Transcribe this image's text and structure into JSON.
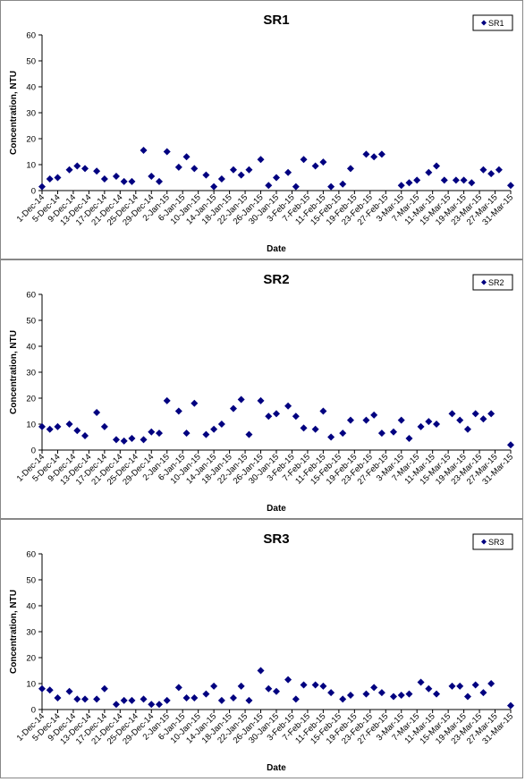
{
  "chart_data": [
    {
      "type": "scatter",
      "title": "SR1",
      "xlabel": "Date",
      "ylabel": "Concentration, NTU",
      "ylim": [
        0,
        60
      ],
      "yticks": [
        0,
        10,
        20,
        30,
        40,
        50,
        60
      ],
      "xlim": [
        "1-Dec-14",
        "31-Mar-15"
      ],
      "xtick_labels": [
        "1-Dec-14",
        "5-Dec-14",
        "9-Dec-14",
        "13-Dec-14",
        "17-Dec-14",
        "21-Dec-14",
        "25-Dec-14",
        "29-Dec-14",
        "2-Jan-15",
        "6-Jan-15",
        "10-Jan-15",
        "14-Jan-15",
        "18-Jan-15",
        "22-Jan-15",
        "26-Jan-15",
        "30-Jan-15",
        "3-Feb-15",
        "7-Feb-15",
        "11-Feb-15",
        "15-Feb-15",
        "19-Feb-15",
        "23-Feb-15",
        "27-Feb-15",
        "3-Mar-15",
        "7-Mar-15",
        "11-Mar-15",
        "15-Mar-15",
        "19-Mar-15",
        "23-Mar-15",
        "27-Mar-15",
        "31-Mar-15"
      ],
      "grid": false,
      "legend_position": "top-right",
      "marker_color": "#000080",
      "series": [
        {
          "name": "SR1",
          "points": [
            [
              "1-Dec-14",
              1.5
            ],
            [
              "3-Dec-14",
              4.5
            ],
            [
              "5-Dec-14",
              5
            ],
            [
              "8-Dec-14",
              8
            ],
            [
              "10-Dec-14",
              9.5
            ],
            [
              "12-Dec-14",
              8.5
            ],
            [
              "15-Dec-14",
              7.5
            ],
            [
              "17-Dec-14",
              4.5
            ],
            [
              "20-Dec-14",
              5.5
            ],
            [
              "22-Dec-14",
              3.5
            ],
            [
              "24-Dec-14",
              3.5
            ],
            [
              "27-Dec-14",
              15.5
            ],
            [
              "29-Dec-14",
              5.5
            ],
            [
              "31-Dec-14",
              3.5
            ],
            [
              "2-Jan-15",
              15
            ],
            [
              "5-Jan-15",
              9
            ],
            [
              "7-Jan-15",
              13
            ],
            [
              "9-Jan-15",
              8.5
            ],
            [
              "12-Jan-15",
              6
            ],
            [
              "14-Jan-15",
              1.5
            ],
            [
              "16-Jan-15",
              4.5
            ],
            [
              "19-Jan-15",
              8
            ],
            [
              "21-Jan-15",
              6
            ],
            [
              "23-Jan-15",
              8
            ],
            [
              "26-Jan-15",
              12
            ],
            [
              "28-Jan-15",
              2
            ],
            [
              "30-Jan-15",
              5
            ],
            [
              "2-Feb-15",
              7
            ],
            [
              "4-Feb-15",
              1.5
            ],
            [
              "6-Feb-15",
              12
            ],
            [
              "9-Feb-15",
              9.5
            ],
            [
              "11-Feb-15",
              11
            ],
            [
              "13-Feb-15",
              1.5
            ],
            [
              "16-Feb-15",
              2.5
            ],
            [
              "18-Feb-15",
              8.5
            ],
            [
              "22-Feb-15",
              14
            ],
            [
              "24-Feb-15",
              13
            ],
            [
              "26-Feb-15",
              14
            ],
            [
              "3-Mar-15",
              2
            ],
            [
              "5-Mar-15",
              3
            ],
            [
              "7-Mar-15",
              4
            ],
            [
              "10-Mar-15",
              7
            ],
            [
              "12-Mar-15",
              9.5
            ],
            [
              "14-Mar-15",
              4
            ],
            [
              "17-Mar-15",
              4
            ],
            [
              "19-Mar-15",
              4
            ],
            [
              "21-Mar-15",
              3
            ],
            [
              "24-Mar-15",
              8
            ],
            [
              "26-Mar-15",
              6.5
            ],
            [
              "28-Mar-15",
              8
            ],
            [
              "31-Mar-15",
              2
            ]
          ]
        }
      ]
    },
    {
      "type": "scatter",
      "title": "SR2",
      "xlabel": "Date",
      "ylabel": "Concentration, NTU",
      "ylim": [
        0,
        60
      ],
      "yticks": [
        0,
        10,
        20,
        30,
        40,
        50,
        60
      ],
      "xlim": [
        "1-Dec-14",
        "31-Mar-15"
      ],
      "xtick_labels": [
        "1-Dec-14",
        "5-Dec-14",
        "9-Dec-14",
        "13-Dec-14",
        "17-Dec-14",
        "21-Dec-14",
        "25-Dec-14",
        "29-Dec-14",
        "2-Jan-15",
        "6-Jan-15",
        "10-Jan-15",
        "14-Jan-15",
        "18-Jan-15",
        "22-Jan-15",
        "26-Jan-15",
        "30-Jan-15",
        "3-Feb-15",
        "7-Feb-15",
        "11-Feb-15",
        "15-Feb-15",
        "19-Feb-15",
        "23-Feb-15",
        "27-Feb-15",
        "3-Mar-15",
        "7-Mar-15",
        "11-Mar-15",
        "15-Mar-15",
        "19-Mar-15",
        "23-Mar-15",
        "27-Mar-15",
        "31-Mar-15"
      ],
      "grid": false,
      "legend_position": "top-right",
      "marker_color": "#000080",
      "series": [
        {
          "name": "SR2",
          "points": [
            [
              "1-Dec-14",
              9
            ],
            [
              "3-Dec-14",
              8
            ],
            [
              "5-Dec-14",
              9
            ],
            [
              "8-Dec-14",
              10
            ],
            [
              "10-Dec-14",
              7.5
            ],
            [
              "12-Dec-14",
              5.5
            ],
            [
              "15-Dec-14",
              14.5
            ],
            [
              "17-Dec-14",
              9
            ],
            [
              "20-Dec-14",
              4
            ],
            [
              "22-Dec-14",
              3.5
            ],
            [
              "24-Dec-14",
              4.5
            ],
            [
              "27-Dec-14",
              4
            ],
            [
              "29-Dec-14",
              7
            ],
            [
              "31-Dec-14",
              6.5
            ],
            [
              "2-Jan-15",
              19
            ],
            [
              "5-Jan-15",
              15
            ],
            [
              "7-Jan-15",
              6.5
            ],
            [
              "9-Jan-15",
              18
            ],
            [
              "12-Jan-15",
              6
            ],
            [
              "14-Jan-15",
              8
            ],
            [
              "16-Jan-15",
              10
            ],
            [
              "19-Jan-15",
              16
            ],
            [
              "21-Jan-15",
              19.5
            ],
            [
              "23-Jan-15",
              6
            ],
            [
              "26-Jan-15",
              19
            ],
            [
              "28-Jan-15",
              13
            ],
            [
              "30-Jan-15",
              14
            ],
            [
              "2-Feb-15",
              17
            ],
            [
              "4-Feb-15",
              13
            ],
            [
              "6-Feb-15",
              8.5
            ],
            [
              "9-Feb-15",
              8
            ],
            [
              "11-Feb-15",
              15
            ],
            [
              "13-Feb-15",
              5
            ],
            [
              "16-Feb-15",
              6.5
            ],
            [
              "18-Feb-15",
              11.5
            ],
            [
              "22-Feb-15",
              11.5
            ],
            [
              "24-Feb-15",
              13.5
            ],
            [
              "26-Feb-15",
              6.5
            ],
            [
              "1-Mar-15",
              7
            ],
            [
              "3-Mar-15",
              11.5
            ],
            [
              "5-Mar-15",
              4.5
            ],
            [
              "8-Mar-15",
              9
            ],
            [
              "10-Mar-15",
              11
            ],
            [
              "12-Mar-15",
              10
            ],
            [
              "16-Mar-15",
              14
            ],
            [
              "18-Mar-15",
              11.5
            ],
            [
              "20-Mar-15",
              8
            ],
            [
              "22-Mar-15",
              14
            ],
            [
              "24-Mar-15",
              12
            ],
            [
              "26-Mar-15",
              14
            ],
            [
              "31-Mar-15",
              2
            ]
          ]
        }
      ]
    },
    {
      "type": "scatter",
      "title": "SR3",
      "xlabel": "Date",
      "ylabel": "Concentration, NTU",
      "ylim": [
        0,
        60
      ],
      "yticks": [
        0,
        10,
        20,
        30,
        40,
        50,
        60
      ],
      "xlim": [
        "1-Dec-14",
        "31-Mar-15"
      ],
      "xtick_labels": [
        "1-Dec-14",
        "5-Dec-14",
        "9-Dec-14",
        "13-Dec-14",
        "17-Dec-14",
        "21-Dec-14",
        "25-Dec-14",
        "29-Dec-14",
        "2-Jan-15",
        "6-Jan-15",
        "10-Jan-15",
        "14-Jan-15",
        "18-Jan-15",
        "22-Jan-15",
        "26-Jan-15",
        "30-Jan-15",
        "3-Feb-15",
        "7-Feb-15",
        "11-Feb-15",
        "15-Feb-15",
        "19-Feb-15",
        "23-Feb-15",
        "27-Feb-15",
        "3-Mar-15",
        "7-Mar-15",
        "11-Mar-15",
        "15-Mar-15",
        "19-Mar-15",
        "23-Mar-15",
        "27-Mar-15",
        "31-Mar-15"
      ],
      "grid": false,
      "legend_position": "top-right",
      "marker_color": "#000080",
      "series": [
        {
          "name": "SR3",
          "points": [
            [
              "1-Dec-14",
              8
            ],
            [
              "3-Dec-14",
              7.5
            ],
            [
              "5-Dec-14",
              4.5
            ],
            [
              "8-Dec-14",
              7
            ],
            [
              "10-Dec-14",
              4
            ],
            [
              "12-Dec-14",
              4
            ],
            [
              "15-Dec-14",
              4
            ],
            [
              "17-Dec-14",
              8
            ],
            [
              "20-Dec-14",
              2
            ],
            [
              "22-Dec-14",
              3.5
            ],
            [
              "24-Dec-14",
              3.5
            ],
            [
              "27-Dec-14",
              4
            ],
            [
              "29-Dec-14",
              2
            ],
            [
              "31-Dec-14",
              2
            ],
            [
              "2-Jan-15",
              3.5
            ],
            [
              "5-Jan-15",
              8.5
            ],
            [
              "7-Jan-15",
              4.5
            ],
            [
              "9-Jan-15",
              4.5
            ],
            [
              "12-Jan-15",
              6
            ],
            [
              "14-Jan-15",
              9
            ],
            [
              "16-Jan-15",
              3.5
            ],
            [
              "19-Jan-15",
              4.5
            ],
            [
              "21-Jan-15",
              9
            ],
            [
              "23-Jan-15",
              3.5
            ],
            [
              "26-Jan-15",
              15
            ],
            [
              "28-Jan-15",
              8
            ],
            [
              "30-Jan-15",
              7
            ],
            [
              "2-Feb-15",
              11.5
            ],
            [
              "4-Feb-15",
              4
            ],
            [
              "6-Feb-15",
              9.5
            ],
            [
              "9-Feb-15",
              9.5
            ],
            [
              "11-Feb-15",
              9
            ],
            [
              "13-Feb-15",
              6.5
            ],
            [
              "16-Feb-15",
              4
            ],
            [
              "18-Feb-15",
              5.5
            ],
            [
              "22-Feb-15",
              6
            ],
            [
              "24-Feb-15",
              8.5
            ],
            [
              "26-Feb-15",
              6.5
            ],
            [
              "1-Mar-15",
              5
            ],
            [
              "3-Mar-15",
              5.5
            ],
            [
              "5-Mar-15",
              6
            ],
            [
              "8-Mar-15",
              10.5
            ],
            [
              "10-Mar-15",
              8
            ],
            [
              "12-Mar-15",
              6
            ],
            [
              "16-Mar-15",
              9
            ],
            [
              "18-Mar-15",
              9
            ],
            [
              "20-Mar-15",
              5
            ],
            [
              "22-Mar-15",
              9.5
            ],
            [
              "24-Mar-15",
              6.5
            ],
            [
              "26-Mar-15",
              10
            ],
            [
              "31-Mar-15",
              1.5
            ]
          ]
        }
      ]
    }
  ]
}
